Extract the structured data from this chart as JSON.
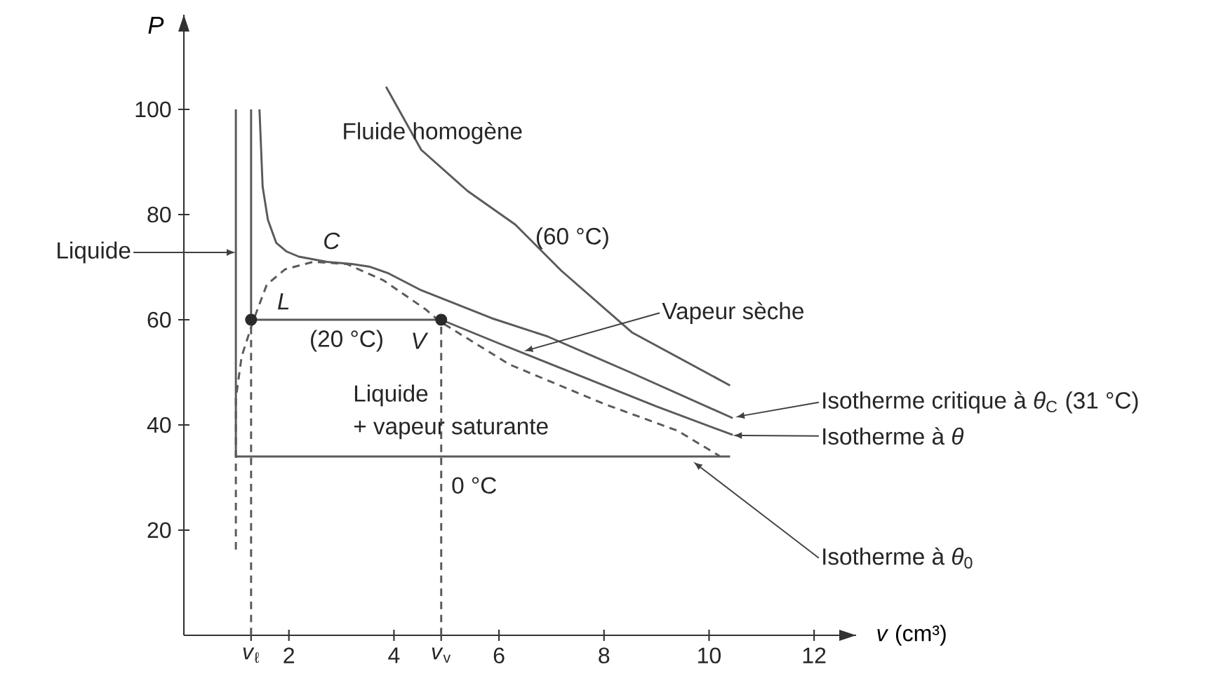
{
  "chart_data": {
    "type": "line",
    "xlabel": "*v* (cm³)",
    "ylabel": "P",
    "xlim": [
      0,
      12.8
    ],
    "ylim": [
      0,
      118
    ],
    "xticks": [
      {
        "value": 1.28,
        "label": "*v*$_{ℓ}$"
      },
      2,
      4,
      {
        "value": 4.9,
        "label": "*v*$_{v}$"
      },
      6,
      8,
      10,
      12
    ],
    "yticks": [
      20,
      40,
      60,
      80,
      100
    ],
    "series": [
      {
        "color": "#5a5a5a",
        "x": [
          0.99,
          0.99,
          10.4
        ],
        "values": [
          100,
          34,
          34
        ]
      },
      {
        "color": "#5a5a5a",
        "x": [
          1.28,
          1.28,
          4.9,
          6.0,
          7.5,
          9.0,
          10.45
        ],
        "values": [
          100,
          60,
          60,
          55.5,
          49.5,
          43.5,
          38.1
        ]
      },
      {
        "color": "#5a5a5a",
        "x": [
          1.44,
          1.5,
          1.6,
          1.76,
          1.95,
          2.19,
          2.73,
          3.2,
          3.53,
          3.9,
          4.52,
          5.86,
          6.93,
          8.5,
          10.45
        ],
        "values": [
          100,
          85.3,
          79,
          74.6,
          73,
          72,
          71,
          70.6,
          70.1,
          68.8,
          65.6,
          60.3,
          56.8,
          50,
          41.3
        ]
      },
      {
        "color": "#5a5a5a",
        "x": [
          3.85,
          4.52,
          5.4,
          6.31,
          7.19,
          8.53,
          10.4
        ],
        "values": [
          104.3,
          92.3,
          84.5,
          78.1,
          69.3,
          57.6,
          47.5
        ]
      },
      {
        "color": "#5a5a5a",
        "line_style": "dashed",
        "x": [
          0.99,
          0.99,
          1.1,
          1.31,
          1.58,
          1.93,
          2.46,
          3.1,
          3.8,
          4.6,
          4.87,
          6.2,
          8.0,
          9.4,
          10.2
        ],
        "values": [
          16.3,
          45,
          53,
          59.5,
          66.7,
          69.6,
          71,
          70.6,
          67.5,
          62,
          59.7,
          51.5,
          44,
          38.9,
          34.1
        ]
      },
      {
        "color": "#5a5a5a",
        "line_style": "dashed",
        "x": [
          1.28,
          1.28
        ],
        "values": [
          0,
          60
        ]
      },
      {
        "color": "#5a5a5a",
        "line_style": "dashed",
        "x": [
          4.9,
          4.9
        ],
        "values": [
          0,
          60
        ]
      },
      {
        "type": "scatter",
        "marker": "circle",
        "color": "#2a2a2a",
        "x": [
          1.28,
          4.9
        ],
        "values": [
          60,
          60
        ]
      }
    ],
    "annotations": [
      "Fluide homogène",
      "(60 °C)",
      "C",
      "L",
      "(20 °C)",
      "V",
      "Liquide",
      "+ vapeur saturante",
      "0 °C",
      {
        "text": "Vapeur sèche",
        "x": 6.47,
        "y": 54
      },
      {
        "text": "Isotherme critique à *θ*$_{C}$ (31 °C)",
        "x": 10.5,
        "y": 41.5
      },
      {
        "text": "Isotherme à *θ*",
        "x": 10.45,
        "y": 38
      },
      {
        "text": "Isotherme à *θ*$_{0}$",
        "x": 9.7,
        "y": 33
      },
      {
        "text": "Liquide",
        "x": 0.99,
        "y": 72.8
      }
    ]
  }
}
